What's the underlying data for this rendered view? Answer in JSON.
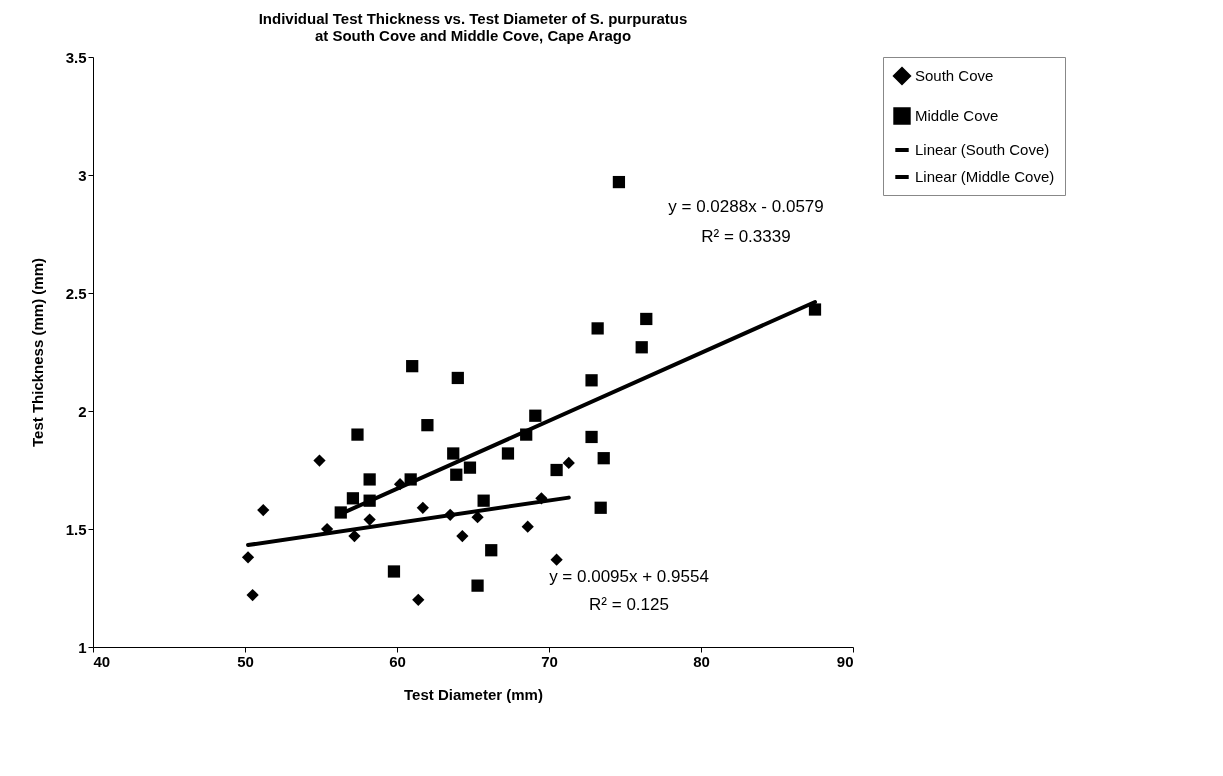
{
  "chart_data": {
    "type": "scatter",
    "title": "Individual Test Thickness vs. Test Diameter of S. purpuratus\nat South Cove and Middle Cove, Cape Arago",
    "xlabel": "Test Diameter (mm)",
    "ylabel": "Test Thickness (mm)  (mm)",
    "xlim": [
      40,
      90
    ],
    "xticks": [
      40,
      50,
      60,
      70,
      80,
      90
    ],
    "ylim": [
      1,
      3.5
    ],
    "yticks": [
      1,
      1.5,
      2,
      2.5,
      3,
      3.5
    ],
    "grid": false,
    "legend": "right",
    "series": [
      {
        "name": "South Cove",
        "marker": "diamond",
        "color": "#000000",
        "x": [
          51.2,
          54.9,
          50.2,
          50.5,
          55.4,
          57.2,
          58.2,
          60.2,
          71.3,
          69.5,
          61.7,
          63.5,
          65.3,
          64.3,
          68.6,
          70.5,
          61.4
        ],
        "values": [
          1.58,
          1.79,
          1.38,
          1.22,
          1.5,
          1.47,
          1.54,
          1.69,
          1.78,
          1.63,
          1.59,
          1.56,
          1.55,
          1.47,
          1.51,
          1.37,
          1.2
        ]
      },
      {
        "name": "Middle Cove",
        "marker": "square",
        "color": "#000000",
        "x": [
          57.4,
          58.2,
          57.1,
          58.2,
          56.3,
          59.8,
          60.9,
          74.6,
          87.5,
          76.4,
          73.2,
          76.1,
          61.0,
          64.0,
          72.8,
          62.0,
          69.1,
          68.5,
          72.8,
          63.7,
          67.3,
          73.6,
          64.8,
          63.9,
          70.5,
          65.7,
          73.4,
          66.2,
          65.3
        ],
        "values": [
          1.9,
          1.71,
          1.63,
          1.62,
          1.57,
          1.32,
          1.71,
          2.97,
          2.43,
          2.39,
          2.35,
          2.27,
          2.19,
          2.14,
          2.13,
          1.94,
          1.98,
          1.9,
          1.89,
          1.82,
          1.82,
          1.8,
          1.76,
          1.73,
          1.75,
          1.62,
          1.59,
          1.41,
          1.26
        ]
      },
      {
        "name": "Linear (South Cove)",
        "type": "line",
        "marker": "none",
        "line_style": "solid",
        "color": "#000000",
        "x": [
          50.2,
          71.3
        ],
        "values": [
          1.432,
          1.633
        ]
      },
      {
        "name": "Linear (Middle Cove)",
        "type": "line",
        "marker": "none",
        "line_style": "solid",
        "color": "#000000",
        "x": [
          56.3,
          87.5
        ],
        "values": [
          1.564,
          2.462
        ]
      }
    ],
    "annotations": [
      "y = 0.0288x - 0.0579",
      "R² = 0.3339",
      "y = 0.0095x + 0.9554",
      "R² = 0.125"
    ]
  }
}
